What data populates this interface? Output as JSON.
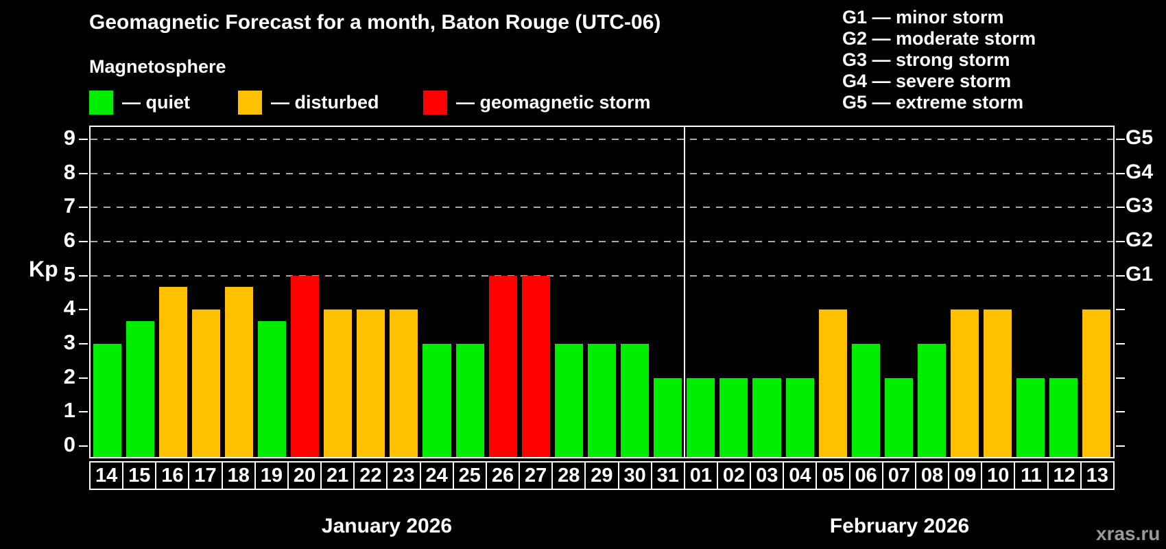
{
  "header": {
    "title": "Geomagnetic Forecast for a month, Baton Rouge (UTC-06)",
    "subtitle": "Magnetosphere"
  },
  "legend": {
    "items": [
      {
        "status": "quiet",
        "label": "— quiet"
      },
      {
        "status": "disturbed",
        "label": "— disturbed"
      },
      {
        "status": "storm",
        "label": "— geomagnetic storm"
      }
    ]
  },
  "storm_scale_legend": {
    "items": [
      {
        "label": "G1 — minor storm"
      },
      {
        "label": "G2 — moderate storm"
      },
      {
        "label": "G3 — strong storm"
      },
      {
        "label": "G4 — severe storm"
      },
      {
        "label": "G5 — extreme storm"
      }
    ]
  },
  "colors": {
    "quiet": "#00ED00",
    "disturbed": "#FFC000",
    "storm": "#FF0000",
    "gridline": "#AAAAAA",
    "axis": "#FFFFFF",
    "watermark": "#999999"
  },
  "chart_data": {
    "type": "bar",
    "title": "Geomagnetic Forecast for a month, Baton Rouge (UTC-06)",
    "ylabel": "Kp",
    "ylim": [
      0,
      9
    ],
    "yticks": [
      0,
      1,
      2,
      3,
      4,
      5,
      6,
      7,
      8,
      9
    ],
    "gridlines_at": [
      5,
      6,
      7,
      8,
      9
    ],
    "right_axis_labels": [
      {
        "kp": 5,
        "label": "G1"
      },
      {
        "kp": 6,
        "label": "G2"
      },
      {
        "kp": 7,
        "label": "G3"
      },
      {
        "kp": 8,
        "label": "G4"
      },
      {
        "kp": 9,
        "label": "G5"
      }
    ],
    "months": [
      {
        "label": "January 2026",
        "days": 18
      },
      {
        "label": "February 2026",
        "days": 13
      }
    ],
    "categories": [
      "14",
      "15",
      "16",
      "17",
      "18",
      "19",
      "20",
      "21",
      "22",
      "23",
      "24",
      "25",
      "26",
      "27",
      "28",
      "29",
      "30",
      "31",
      "01",
      "02",
      "03",
      "04",
      "05",
      "06",
      "07",
      "08",
      "09",
      "10",
      "11",
      "12",
      "13"
    ],
    "values": [
      3,
      3.67,
      4.67,
      4,
      4.67,
      3.67,
      5,
      4,
      4,
      4,
      3,
      3,
      5,
      5,
      3,
      3,
      3,
      2,
      2,
      2,
      2,
      2,
      4,
      3,
      2,
      3,
      4,
      4,
      2,
      2,
      4
    ],
    "statuses": [
      "quiet",
      "quiet",
      "disturbed",
      "disturbed",
      "disturbed",
      "quiet",
      "storm",
      "disturbed",
      "disturbed",
      "disturbed",
      "quiet",
      "quiet",
      "storm",
      "storm",
      "quiet",
      "quiet",
      "quiet",
      "quiet",
      "quiet",
      "quiet",
      "quiet",
      "quiet",
      "disturbed",
      "quiet",
      "quiet",
      "quiet",
      "disturbed",
      "disturbed",
      "quiet",
      "quiet",
      "disturbed"
    ]
  },
  "watermark": "xras.ru"
}
